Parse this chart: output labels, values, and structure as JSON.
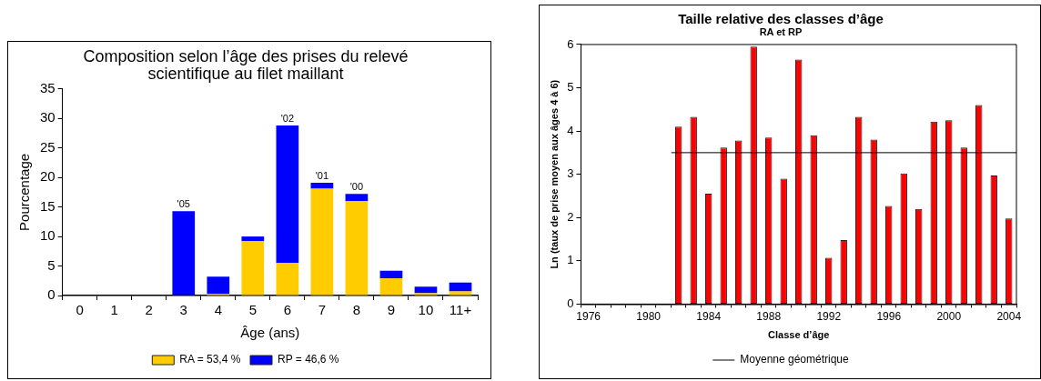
{
  "chart_data": [
    {
      "type": "bar",
      "title": "Composition selon l’âge des prises du relevé scientifique au filet maillant",
      "xlabel": "Âge (ans)",
      "ylabel": "Pourcentage",
      "categories": [
        "0",
        "1",
        "2",
        "3",
        "4",
        "5",
        "6",
        "7",
        "8",
        "9",
        "10",
        "11+"
      ],
      "stacked": true,
      "series": [
        {
          "name": "RA = 53,4 %",
          "color": "#ffcc00",
          "values": [
            null,
            null,
            null,
            null,
            0.3,
            9.2,
            5.5,
            18.1,
            16.0,
            2.9,
            0.4,
            0.7
          ]
        },
        {
          "name": "RP = 46,6 %",
          "color": "#0000ff",
          "values": [
            null,
            null,
            null,
            14.3,
            2.9,
            0.8,
            23.3,
            1.0,
            1.2,
            1.3,
            1.1,
            1.5
          ]
        }
      ],
      "annotations": [
        {
          "text": "'05",
          "x": "3",
          "y": 14.3
        },
        {
          "text": "'02",
          "x": "6",
          "y": 28.8
        },
        {
          "text": "'01",
          "x": "7",
          "y": 19.1
        },
        {
          "text": "'00",
          "x": "8",
          "y": 17.2
        }
      ],
      "ylim": [
        0,
        35
      ],
      "yticks": [
        0,
        5,
        10,
        15,
        20,
        25,
        30,
        35
      ],
      "grid": false,
      "legend": "bottom"
    },
    {
      "type": "bar",
      "title": "Taille relative des classes d’âge",
      "subtitle": "RA et RP",
      "xlabel": "Classe d’âge",
      "ylabel": "Ln (taux de prise moyen aux âges 4 à 6)",
      "categories": [
        "1976",
        null,
        null,
        null,
        "1980",
        null,
        null,
        null,
        "1984",
        null,
        null,
        null,
        "1988",
        null,
        null,
        null,
        "1992",
        null,
        null,
        null,
        "1996",
        null,
        null,
        null,
        "2000",
        null,
        null,
        null,
        "2004"
      ],
      "series": [
        {
          "color": "#ff0000",
          "values": [
            null,
            null,
            null,
            null,
            null,
            null,
            4.1,
            4.33,
            2.55,
            3.62,
            3.78,
            5.95,
            3.85,
            2.9,
            5.65,
            3.9,
            1.07,
            1.48,
            4.33,
            3.8,
            2.27,
            3.02,
            2.2,
            4.22,
            4.25,
            3.62,
            4.6,
            2.97,
            1.98
          ]
        }
      ],
      "ref_lines": [
        {
          "axis": "y",
          "value": 3.5,
          "label": "Moyenne géométrique",
          "color": "#000000"
        }
      ],
      "ylim": [
        0,
        6
      ],
      "yticks": [
        0,
        1,
        2,
        3,
        4,
        5,
        6
      ],
      "grid": false,
      "legend": "bottom"
    }
  ]
}
